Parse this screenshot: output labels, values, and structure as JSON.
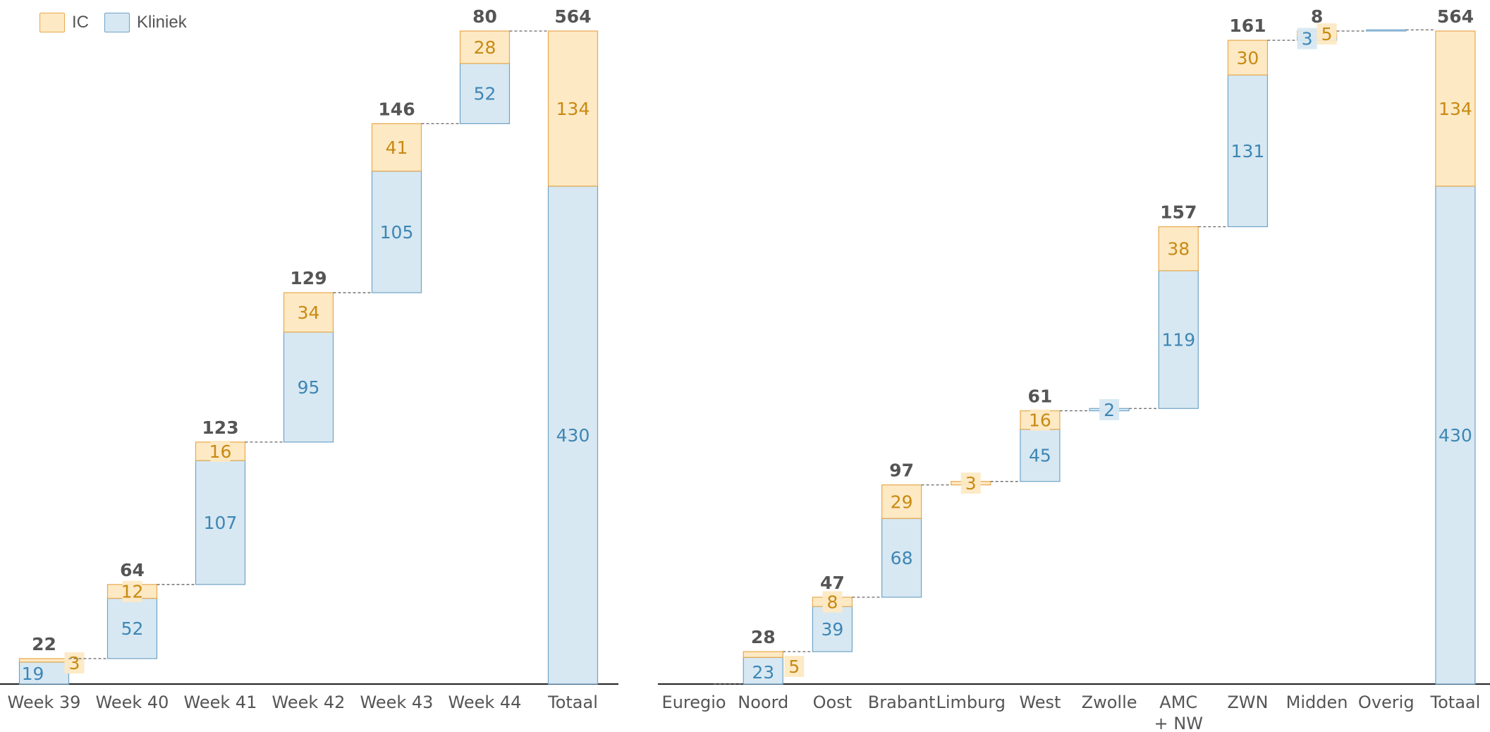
{
  "colors": {
    "ic_fill": "#FDE9C4",
    "ic_stroke": "#E8A84C",
    "ic_text": "#C88A12",
    "kliniek_fill": "#D7E8F2",
    "kliniek_stroke": "#6FA3C8",
    "kliniek_text": "#3E86B5",
    "total_text": "#555555",
    "axis_label": "#555555",
    "axis_line": "#222222",
    "connector": "#666666"
  },
  "legend": [
    {
      "name": "IC",
      "key": "ic"
    },
    {
      "name": "Kliniek",
      "key": "kliniek"
    }
  ],
  "chart_data": [
    {
      "type": "waterfall",
      "legend_position": "top-left",
      "grid": false,
      "ylim": [
        0,
        564
      ],
      "categories": [
        "Week 39",
        "Week 40",
        "Week 41",
        "Week 42",
        "Week 43",
        "Week 44",
        "Totaal"
      ],
      "series": [
        {
          "name": "IC",
          "values": [
            3,
            12,
            16,
            34,
            41,
            28,
            134
          ]
        },
        {
          "name": "Kliniek",
          "values": [
            19,
            52,
            107,
            95,
            105,
            52,
            430
          ]
        }
      ],
      "totals": [
        22,
        64,
        123,
        129,
        146,
        80,
        564
      ],
      "segment_labels": {
        "ic": [
          "3",
          "12",
          "16",
          "34",
          "41",
          "28",
          "134"
        ],
        "kliniek": [
          "19",
          "52",
          "107",
          "95",
          "105",
          "52",
          "430"
        ]
      },
      "total_labels": [
        "22",
        "64",
        "123",
        "129",
        "146",
        "80",
        "564"
      ],
      "is_total": [
        false,
        false,
        false,
        false,
        false,
        false,
        true
      ]
    },
    {
      "type": "waterfall",
      "grid": false,
      "ylim": [
        0,
        564
      ],
      "categories": [
        "Euregio",
        "Noord",
        "Oost",
        "Brabant",
        "Limburg",
        "West",
        "Zwolle",
        "AMC\n+ NW",
        "ZWN",
        "Midden",
        "Overig",
        "Totaal"
      ],
      "series": [
        {
          "name": "IC",
          "values": [
            0,
            5,
            8,
            29,
            3,
            16,
            0,
            38,
            30,
            5,
            0,
            134
          ]
        },
        {
          "name": "Kliniek",
          "values": [
            0,
            23,
            39,
            68,
            0,
            45,
            2,
            119,
            131,
            3,
            1,
            430
          ]
        }
      ],
      "totals": [
        0,
        28,
        47,
        97,
        3,
        61,
        2,
        157,
        161,
        8,
        1,
        564
      ],
      "segment_labels": {
        "ic": [
          "",
          "5",
          "8",
          "29",
          "3",
          "16",
          "",
          "38",
          "30",
          "5",
          "",
          "134"
        ],
        "kliniek": [
          "",
          "23",
          "39",
          "68",
          "",
          "45",
          "2",
          "119",
          "131",
          "3",
          "",
          "430"
        ]
      },
      "total_labels": [
        "",
        "28",
        "47",
        "97",
        "",
        "61",
        "",
        "157",
        "161",
        "8",
        "",
        "564"
      ],
      "is_total": [
        false,
        false,
        false,
        false,
        false,
        false,
        false,
        false,
        false,
        false,
        false,
        true
      ]
    }
  ]
}
